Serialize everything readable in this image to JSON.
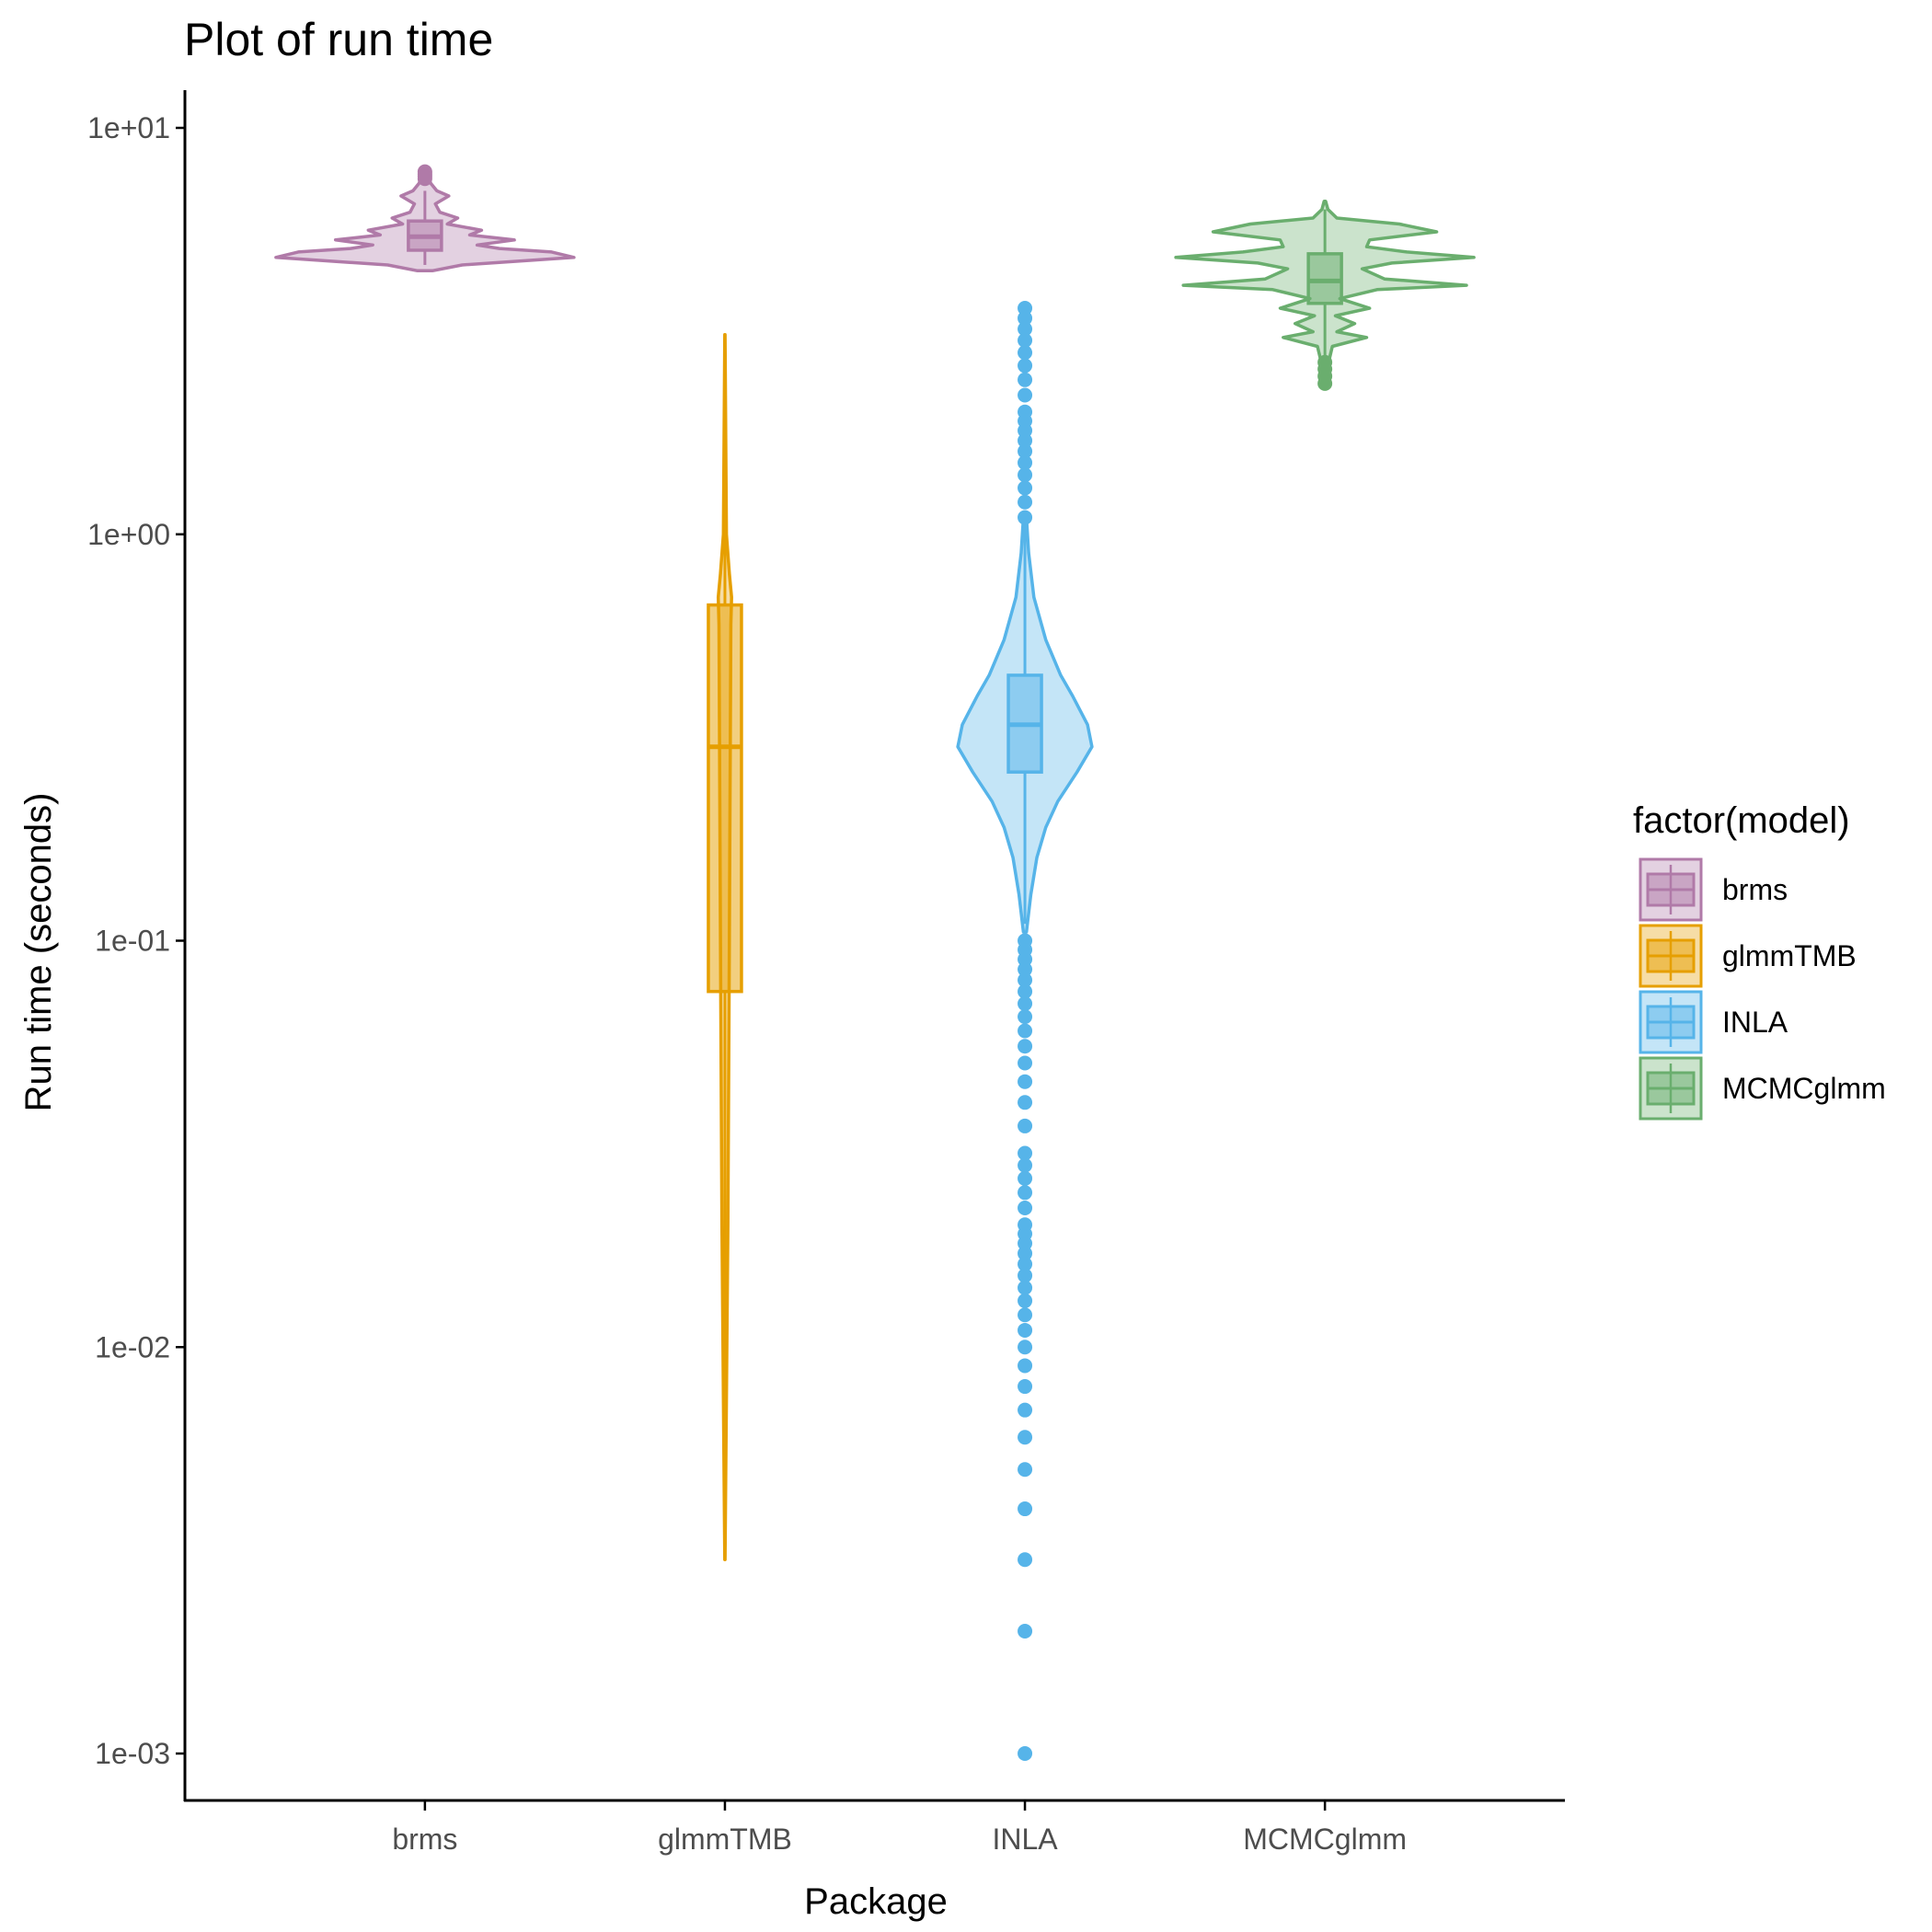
{
  "chart_data": {
    "type": "violin",
    "title": "Plot of run time",
    "xlabel": "Package",
    "ylabel": "Run time (seconds)",
    "y_scale": "log10",
    "ylim": [
      0.00075,
      12
    ],
    "y_ticks": [
      {
        "value": 10,
        "label": "1e+01"
      },
      {
        "value": 1,
        "label": "1e+00"
      },
      {
        "value": 0.1,
        "label": "1e-01"
      },
      {
        "value": 0.01,
        "label": "1e-02"
      },
      {
        "value": 0.001,
        "label": "1e-03"
      }
    ],
    "categories": [
      "brms",
      "glmmTMB",
      "INLA",
      "MCMCglmm"
    ],
    "legend": {
      "title": "factor(model)",
      "position": "right",
      "items": [
        "brms",
        "glmmTMB",
        "INLA",
        "MCMCglmm"
      ]
    },
    "grid": false,
    "series": [
      {
        "name": "brms",
        "color": "#B07AA8",
        "box": {
          "q1": 5.0,
          "median": 5.4,
          "q3": 5.9
        },
        "whisker": [
          4.6,
          7.0
        ],
        "violin": [
          [
            4.45,
            0.05
          ],
          [
            4.6,
            0.25
          ],
          [
            4.8,
            1.0
          ],
          [
            4.95,
            0.85
          ],
          [
            5.05,
            0.5
          ],
          [
            5.15,
            0.35
          ],
          [
            5.3,
            0.6
          ],
          [
            5.45,
            0.3
          ],
          [
            5.6,
            0.38
          ],
          [
            5.8,
            0.15
          ],
          [
            6.0,
            0.22
          ],
          [
            6.2,
            0.1
          ],
          [
            6.5,
            0.07
          ],
          [
            6.8,
            0.16
          ],
          [
            7.0,
            0.08
          ],
          [
            7.3,
            0.04
          ],
          [
            7.6,
            0.02
          ]
        ],
        "outliers": [
          7.5,
          7.6,
          7.7,
          7.8
        ]
      },
      {
        "name": "glmmTMB",
        "color": "#E69F00",
        "box": {
          "q1": 0.075,
          "median": 0.3,
          "q3": 0.67
        },
        "whisker": [
          0.003,
          3.1
        ],
        "violin": [
          [
            0.003,
            0.001
          ],
          [
            0.02,
            0.02
          ],
          [
            0.1,
            0.03
          ],
          [
            0.6,
            0.04
          ],
          [
            0.7,
            0.045
          ],
          [
            0.8,
            0.03
          ],
          [
            1.0,
            0.01
          ],
          [
            3.1,
            0.001
          ]
        ],
        "outliers": []
      },
      {
        "name": "INLA",
        "color": "#56B4E9",
        "box": {
          "q1": 0.26,
          "median": 0.34,
          "q3": 0.45
        },
        "whisker": [
          0.11,
          1.1
        ],
        "violin": [
          [
            0.105,
            0.01
          ],
          [
            0.13,
            0.04
          ],
          [
            0.16,
            0.08
          ],
          [
            0.19,
            0.14
          ],
          [
            0.22,
            0.22
          ],
          [
            0.26,
            0.35
          ],
          [
            0.3,
            0.45
          ],
          [
            0.34,
            0.42
          ],
          [
            0.4,
            0.32
          ],
          [
            0.45,
            0.24
          ],
          [
            0.55,
            0.14
          ],
          [
            0.7,
            0.06
          ],
          [
            0.9,
            0.025
          ],
          [
            1.1,
            0.01
          ]
        ],
        "outliers": [
          0.001,
          0.002,
          0.003,
          0.004,
          0.005,
          0.006,
          0.007,
          0.008,
          0.009,
          0.01,
          0.011,
          0.012,
          0.013,
          0.014,
          0.015,
          0.016,
          0.017,
          0.018,
          0.019,
          0.02,
          0.022,
          0.024,
          0.026,
          0.028,
          0.03,
          0.035,
          0.04,
          0.045,
          0.05,
          0.055,
          0.06,
          0.065,
          0.07,
          0.075,
          0.08,
          0.085,
          0.09,
          0.095,
          0.1,
          1.1,
          1.2,
          1.3,
          1.4,
          1.5,
          1.6,
          1.7,
          1.8,
          1.9,
          2.0,
          2.2,
          2.4,
          2.6,
          2.8,
          3.0,
          3.2,
          3.4,
          3.6
        ]
      },
      {
        "name": "MCMCglmm",
        "color": "#6AAE6E",
        "box": {
          "q1": 3.7,
          "median": 4.2,
          "q3": 4.9
        },
        "whisker": [
          2.7,
          6.3
        ],
        "violin": [
          [
            2.4,
            0.01
          ],
          [
            2.7,
            0.03
          ],
          [
            2.9,
            0.05
          ],
          [
            3.05,
            0.28
          ],
          [
            3.15,
            0.08
          ],
          [
            3.3,
            0.2
          ],
          [
            3.45,
            0.07
          ],
          [
            3.6,
            0.3
          ],
          [
            3.8,
            0.1
          ],
          [
            4.0,
            0.35
          ],
          [
            4.1,
            0.95
          ],
          [
            4.25,
            0.4
          ],
          [
            4.5,
            0.25
          ],
          [
            4.65,
            0.45
          ],
          [
            4.8,
            1.0
          ],
          [
            4.95,
            0.55
          ],
          [
            5.1,
            0.28
          ],
          [
            5.3,
            0.3
          ],
          [
            5.55,
            0.75
          ],
          [
            5.8,
            0.5
          ],
          [
            6.0,
            0.08
          ],
          [
            6.3,
            0.02
          ],
          [
            6.6,
            0.005
          ]
        ],
        "outliers": [
          2.35,
          2.45,
          2.55,
          2.65
        ]
      }
    ]
  }
}
